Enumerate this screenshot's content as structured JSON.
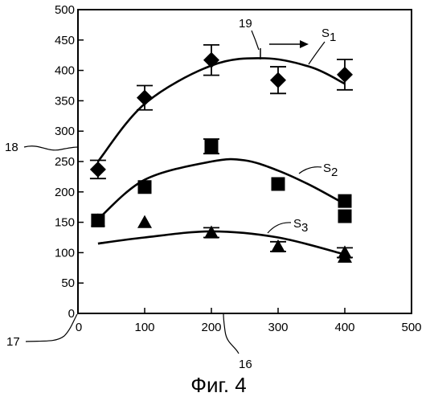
{
  "chart_data": {
    "type": "scatter",
    "title": "",
    "xlabel": "",
    "ylabel": "",
    "xlim": [
      0,
      500
    ],
    "ylim": [
      0,
      500
    ],
    "x_ticks": [
      0,
      100,
      200,
      300,
      400,
      500
    ],
    "y_ticks": [
      0,
      50,
      100,
      150,
      200,
      250,
      300,
      350,
      400,
      450,
      500
    ],
    "grid": false,
    "series": [
      {
        "name": "S1",
        "marker": "diamond",
        "points": [
          {
            "x": 30,
            "y": 237,
            "err": 15
          },
          {
            "x": 100,
            "y": 355,
            "err": 20
          },
          {
            "x": 200,
            "y": 417,
            "err": 25
          },
          {
            "x": 300,
            "y": 384,
            "err": 22
          },
          {
            "x": 400,
            "y": 393,
            "err": 25
          }
        ],
        "fit": [
          [
            30,
            250
          ],
          [
            100,
            345
          ],
          [
            200,
            408
          ],
          [
            280,
            420
          ],
          [
            350,
            405
          ],
          [
            400,
            378
          ]
        ]
      },
      {
        "name": "S2",
        "marker": "square",
        "points": [
          {
            "x": 30,
            "y": 153,
            "err": 0
          },
          {
            "x": 100,
            "y": 208,
            "err": 0
          },
          {
            "x": 200,
            "y": 275,
            "err": 12
          },
          {
            "x": 300,
            "y": 213,
            "err": 0
          },
          {
            "x": 400,
            "y": 185,
            "err": 0
          },
          {
            "x": 400,
            "y": 160,
            "err": 0
          }
        ],
        "fit": [
          [
            30,
            155
          ],
          [
            100,
            220
          ],
          [
            200,
            250
          ],
          [
            250,
            252
          ],
          [
            300,
            235
          ],
          [
            350,
            210
          ],
          [
            400,
            180
          ]
        ]
      },
      {
        "name": "S3",
        "marker": "triangle",
        "points": [
          {
            "x": 30,
            "y": 153,
            "err": 0
          },
          {
            "x": 100,
            "y": 150,
            "err": 0
          },
          {
            "x": 200,
            "y": 133,
            "err": 8
          },
          {
            "x": 300,
            "y": 110,
            "err": 8
          },
          {
            "x": 400,
            "y": 100,
            "err": 8
          },
          {
            "x": 400,
            "y": 93,
            "err": 0
          }
        ],
        "fit": [
          [
            30,
            115
          ],
          [
            100,
            125
          ],
          [
            200,
            135
          ],
          [
            300,
            125
          ],
          [
            400,
            97
          ]
        ]
      }
    ],
    "annotations": {
      "ref_19": "19",
      "ref_18": "18",
      "ref_17": "17",
      "ref_16": "16",
      "s1_label": "S",
      "s1_sub": "1",
      "s2_label": "S",
      "s2_sub": "2",
      "s3_label": "S",
      "s3_sub": "3"
    },
    "caption": "Фиг. 4"
  }
}
